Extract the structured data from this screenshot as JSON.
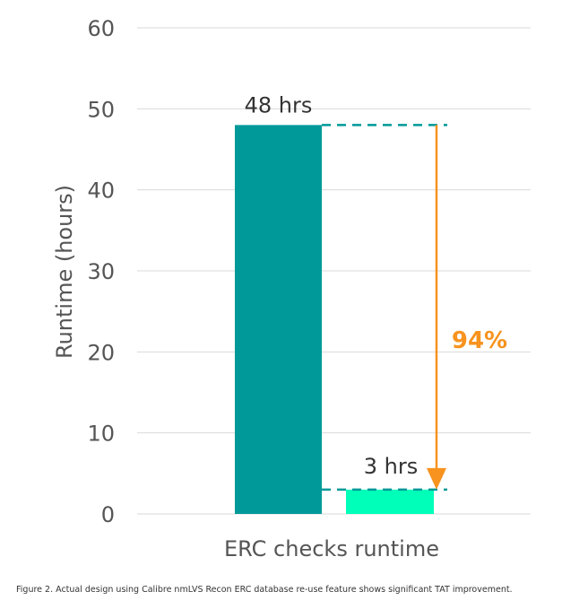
{
  "chart_data": {
    "type": "bar",
    "title": "",
    "xlabel": "",
    "ylabel": "Runtime (hours)",
    "ylim": [
      0,
      60
    ],
    "yticks": [
      0,
      10,
      20,
      30,
      40,
      50,
      60
    ],
    "grid": true,
    "categories": [
      "ERC checks runtime"
    ],
    "series": [
      {
        "values": [
          48
        ],
        "color": "#009999",
        "data_label": "48 hrs"
      },
      {
        "values": [
          3
        ],
        "color": "#00FFB9",
        "data_label": "3 hrs"
      }
    ],
    "annotations": [
      {
        "type": "arrow",
        "from": 48,
        "to": 3,
        "label": "94%",
        "color": "#F7931E"
      }
    ]
  },
  "caption": "Figure 2. Actual design using Calibre nmLVS Recon ERC database re-use feature shows significant TAT improvement.",
  "colors": {
    "gridline": "#d9d9d9",
    "accent": "#F7931E",
    "text": "#555555"
  }
}
